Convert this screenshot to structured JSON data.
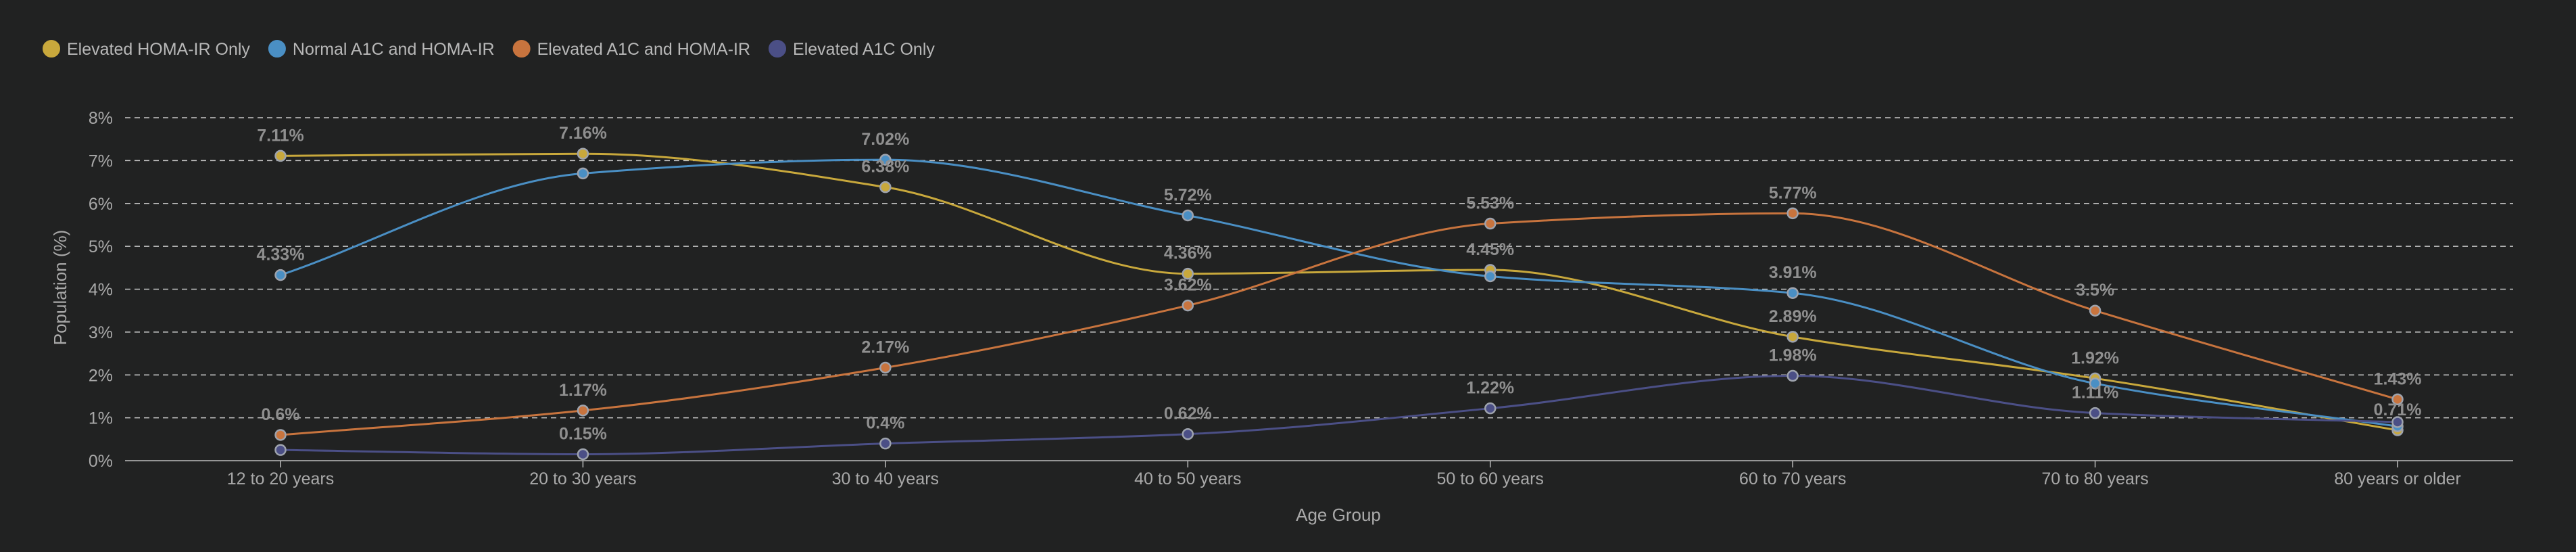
{
  "chart_data": {
    "type": "line",
    "title": "",
    "xlabel": "Age Group",
    "ylabel": "Population (%)",
    "ylim": [
      0,
      8
    ],
    "yticks": [
      "0%",
      "1%",
      "2%",
      "3%",
      "4%",
      "5%",
      "6%",
      "7%",
      "8%"
    ],
    "grid": "horizontal dashed",
    "legend_position": "top-left",
    "categories": [
      "12 to 20 years",
      "20 to 30 years",
      "30 to 40 years",
      "40 to 50 years",
      "50 to 60 years",
      "60 to 70 years",
      "70 to 80 years",
      "80 years or older"
    ],
    "series": [
      {
        "name": "Elevated HOMA-IR Only",
        "color": "#c8a83c",
        "values": [
          7.11,
          7.16,
          6.38,
          4.36,
          4.45,
          2.89,
          1.92,
          0.71
        ],
        "labels": [
          "7.11%",
          "7.16%",
          "6.38%",
          "4.36%",
          "4.45%",
          "2.89%",
          "1.92%",
          "0.71%"
        ]
      },
      {
        "name": "Normal A1C and HOMA-IR",
        "color": "#4a8fc4",
        "values": [
          4.33,
          6.7,
          7.02,
          5.72,
          4.3,
          3.91,
          1.8,
          0.8
        ],
        "labels": [
          "4.33%",
          "",
          "7.02%",
          "5.72%",
          "",
          "3.91%",
          "",
          ""
        ]
      },
      {
        "name": "Elevated A1C and HOMA-IR",
        "color": "#c8743e",
        "values": [
          0.6,
          1.17,
          2.17,
          3.62,
          5.53,
          5.77,
          3.5,
          1.43
        ],
        "labels": [
          "0.6%",
          "1.17%",
          "2.17%",
          "3.62%",
          "5.53%",
          "5.77%",
          "3.5%",
          "1.43%"
        ]
      },
      {
        "name": "Elevated A1C Only",
        "color": "#4b4f86",
        "values": [
          0.25,
          0.15,
          0.4,
          0.62,
          1.22,
          1.98,
          1.11,
          0.9
        ],
        "labels": [
          "",
          "0.15%",
          "0.4%",
          "0.62%",
          "1.22%",
          "1.98%",
          "1.11%",
          ""
        ]
      }
    ]
  }
}
